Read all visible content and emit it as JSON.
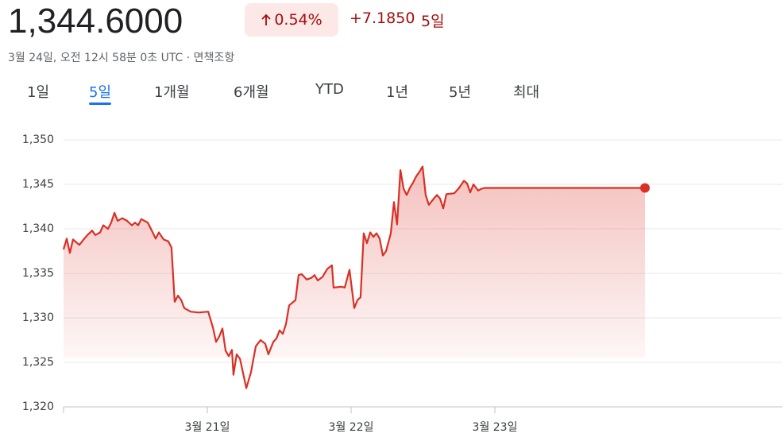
{
  "header": {
    "price": "1,344.6000",
    "change_pct": "0.54%",
    "change_abs": "+7.1850",
    "period": "5일",
    "timestamp": "3월 24일, 오전 12시 58분 0초 UTC · 면책조항"
  },
  "tabs": [
    "1일",
    "5일",
    "1개월",
    "6개월",
    "YTD",
    "1년",
    "5년",
    "최대"
  ],
  "selected_tab": 1,
  "chart_data": {
    "type": "line",
    "color": "#d93025",
    "grid": true,
    "x": [
      20.0,
      20.022,
      20.044,
      20.066,
      20.11,
      20.144,
      20.166,
      20.199,
      20.221,
      20.254,
      20.276,
      20.309,
      20.331,
      20.354,
      20.376,
      20.409,
      20.442,
      20.475,
      20.497,
      20.519,
      20.541,
      20.586,
      20.608,
      20.641,
      20.663,
      20.696,
      20.729,
      20.751,
      20.773,
      20.796,
      20.818,
      20.84,
      20.884,
      20.939,
      21.006,
      21.039,
      21.061,
      21.083,
      21.105,
      21.127,
      21.149,
      21.171,
      21.182,
      21.204,
      21.227,
      21.271,
      21.304,
      21.337,
      21.37,
      21.403,
      21.425,
      21.459,
      21.481,
      21.503,
      21.525,
      21.547,
      21.569,
      21.613,
      21.635,
      21.657,
      21.691,
      21.724,
      21.746,
      21.768,
      21.801,
      21.834,
      21.867,
      21.878,
      21.934,
      21.956,
      21.989,
      22.022,
      22.044,
      22.066,
      22.088,
      22.11,
      22.133,
      22.155,
      22.177,
      22.199,
      22.221,
      22.243,
      22.276,
      22.298,
      22.32,
      22.343,
      22.365,
      22.387,
      22.409,
      22.431,
      22.453,
      22.475,
      22.497,
      22.519,
      22.541,
      22.575,
      22.597,
      22.619,
      22.641,
      22.663,
      22.718,
      22.751,
      22.785,
      22.807,
      22.829,
      22.851,
      22.884,
      22.906,
      22.928,
      24.044
    ],
    "values": [
      1337.7,
      1338.9,
      1337.3,
      1338.8,
      1338.2,
      1338.9,
      1339.3,
      1339.8,
      1339.3,
      1339.6,
      1340.4,
      1340.0,
      1340.7,
      1341.8,
      1340.9,
      1341.2,
      1340.9,
      1340.4,
      1340.7,
      1340.4,
      1341.1,
      1340.7,
      1340.0,
      1338.9,
      1339.6,
      1338.8,
      1338.6,
      1337.9,
      1331.8,
      1332.5,
      1332.0,
      1331.1,
      1330.7,
      1330.6,
      1330.7,
      1328.9,
      1327.3,
      1327.9,
      1328.8,
      1326.3,
      1325.7,
      1326.4,
      1323.6,
      1325.9,
      1325.4,
      1322.1,
      1323.9,
      1326.8,
      1327.5,
      1327.1,
      1325.9,
      1327.3,
      1327.7,
      1328.6,
      1328.2,
      1329.3,
      1331.4,
      1332.0,
      1334.8,
      1334.9,
      1334.3,
      1334.5,
      1334.8,
      1334.2,
      1334.6,
      1335.5,
      1335.9,
      1333.4,
      1333.5,
      1333.4,
      1335.4,
      1331.1,
      1332.0,
      1332.3,
      1339.5,
      1338.4,
      1339.6,
      1339.1,
      1339.5,
      1338.9,
      1337.0,
      1337.5,
      1339.5,
      1343.0,
      1340.5,
      1346.6,
      1344.5,
      1343.8,
      1344.6,
      1345.2,
      1345.9,
      1346.4,
      1347.0,
      1343.8,
      1342.7,
      1343.4,
      1343.8,
      1343.4,
      1342.3,
      1343.9,
      1344.0,
      1344.6,
      1345.4,
      1345.1,
      1344.1,
      1345.0,
      1344.3,
      1344.5,
      1344.6,
      1344.6
    ],
    "xlim": [
      20,
      25
    ],
    "xticks": [
      {
        "value": 21,
        "label": "3월 21일"
      },
      {
        "value": 22,
        "label": "3월 22일"
      },
      {
        "value": 23,
        "label": "3월 23일"
      }
    ],
    "ylim": [
      1320,
      1350
    ],
    "yticks": [
      {
        "value": 1320,
        "label": "1,320"
      },
      {
        "value": 1325,
        "label": "1,325"
      },
      {
        "value": 1330,
        "label": "1,330"
      },
      {
        "value": 1335,
        "label": "1,335"
      },
      {
        "value": 1340,
        "label": "1,340"
      },
      {
        "value": 1345,
        "label": "1,345"
      },
      {
        "value": 1350,
        "label": "1,350"
      }
    ]
  }
}
